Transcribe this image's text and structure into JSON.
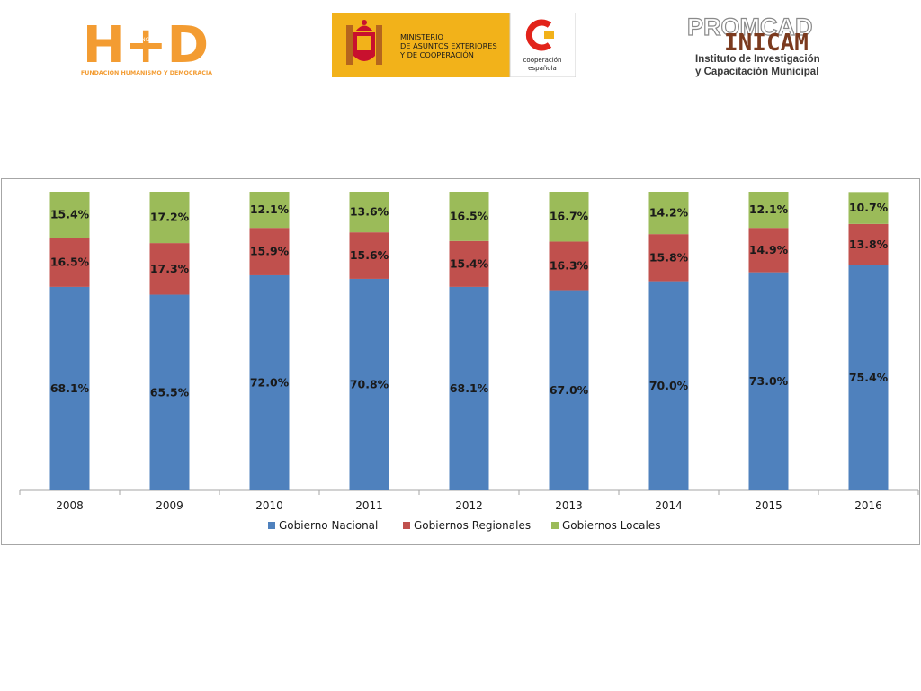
{
  "logos": {
    "hd": {
      "title": "H+D",
      "small": "NGO",
      "caption": "FUNDACIÓN HUMANISMO Y DEMOCRACIA"
    },
    "mae": {
      "line1": "MINISTERIO",
      "line2": "DE ASUNTOS EXTERIORES",
      "line3": "Y DE COOPERACIÓN",
      "coop1": "cooperación",
      "coop2": "española"
    },
    "inicam": {
      "promcad": "PROMCAD",
      "inicam": "INICAM",
      "line1": "Instituto de Investigación",
      "line2": "y Capacitación Municipal"
    }
  },
  "colors": {
    "nacional": "#4f81bd",
    "regionales": "#c0504d",
    "locales": "#9bbb59",
    "orange": "#f39c32",
    "mae_gold": "#f2b21a",
    "coop_red": "#e2231a",
    "inicam_brown": "#7b3a1e"
  },
  "chart_data": {
    "type": "bar",
    "stacked": true,
    "categories": [
      "2008",
      "2009",
      "2010",
      "2011",
      "2012",
      "2013",
      "2014",
      "2015",
      "2016"
    ],
    "series": [
      {
        "name": "Gobierno Nacional",
        "values": [
          68.1,
          65.5,
          72.0,
          70.8,
          68.1,
          67.0,
          70.0,
          73.0,
          75.4
        ],
        "labels": [
          "68.1%",
          "65.5%",
          "72.0%",
          "70.8%",
          "68.1%",
          "67.0%",
          "70.0%",
          "73.0%",
          "75.4%"
        ]
      },
      {
        "name": "Gobiernos Regionales",
        "values": [
          16.5,
          17.3,
          15.9,
          15.6,
          15.4,
          16.3,
          15.8,
          14.9,
          13.8
        ],
        "labels": [
          "16.5%",
          "17.3%",
          "15.9%",
          "15.6%",
          "15.4%",
          "16.3%",
          "15.8%",
          "14.9%",
          "13.8%"
        ]
      },
      {
        "name": "Gobiernos Locales",
        "values": [
          15.4,
          17.2,
          12.1,
          13.6,
          16.5,
          16.7,
          14.2,
          12.1,
          10.7
        ],
        "labels": [
          "15.4%",
          "17.2%",
          "12.1%",
          "13.6%",
          "16.5%",
          "16.7%",
          "14.2%",
          "12.1%",
          "10.7%"
        ]
      }
    ],
    "ylim": [
      0,
      100
    ],
    "grid": false,
    "legend": "bottom"
  }
}
